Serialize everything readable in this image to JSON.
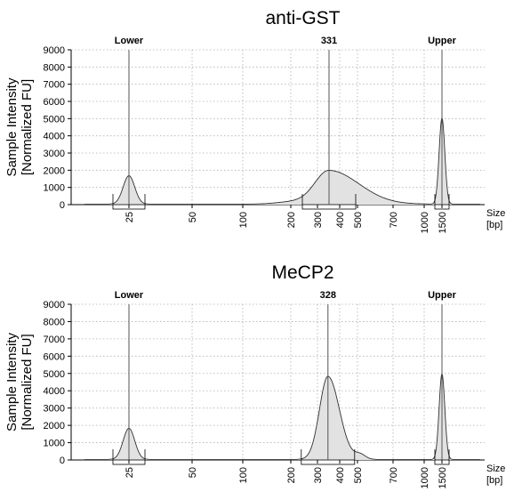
{
  "chart_data": [
    {
      "type": "area",
      "title": "anti-GST",
      "ylabel": "Sample Intensity\n[Normalized FU]",
      "xlabel": "Size\n[bp]",
      "ylim": [
        0,
        9000
      ],
      "yticks": [
        0,
        1000,
        2000,
        3000,
        4000,
        5000,
        6000,
        7000,
        8000,
        9000
      ],
      "xticks": [
        "25",
        "50",
        "100",
        "200",
        "300",
        "400",
        "500",
        "700",
        "1000",
        "1500"
      ],
      "grid": true,
      "markers": [
        {
          "label": "Lower",
          "size_bp": 25
        },
        {
          "label": "331",
          "size_bp": 331
        },
        {
          "label": "Upper",
          "size_bp": 1500
        }
      ],
      "peaks": [
        {
          "label": "Lower",
          "size_bp": 25,
          "height": 1650
        },
        {
          "label": "331",
          "size_bp": 331,
          "height": 1950
        },
        {
          "label": "Upper",
          "size_bp": 1500,
          "height": 5000
        }
      ]
    },
    {
      "type": "area",
      "title": "MeCP2",
      "ylabel": "Sample Intensity\n[Normalized FU]",
      "xlabel": "Size\n[bp]",
      "ylim": [
        0,
        9000
      ],
      "yticks": [
        0,
        1000,
        2000,
        3000,
        4000,
        5000,
        6000,
        7000,
        8000,
        9000
      ],
      "xticks": [
        "25",
        "50",
        "100",
        "200",
        "300",
        "400",
        "500",
        "700",
        "1000",
        "1500"
      ],
      "grid": true,
      "markers": [
        {
          "label": "Lower",
          "size_bp": 25
        },
        {
          "label": "328",
          "size_bp": 328
        },
        {
          "label": "Upper",
          "size_bp": 1500
        }
      ],
      "peaks": [
        {
          "label": "Lower",
          "size_bp": 25,
          "height": 1800
        },
        {
          "label": "328",
          "size_bp": 328,
          "height": 4800
        },
        {
          "label": "Upper",
          "size_bp": 1500,
          "height": 4950
        }
      ]
    }
  ]
}
